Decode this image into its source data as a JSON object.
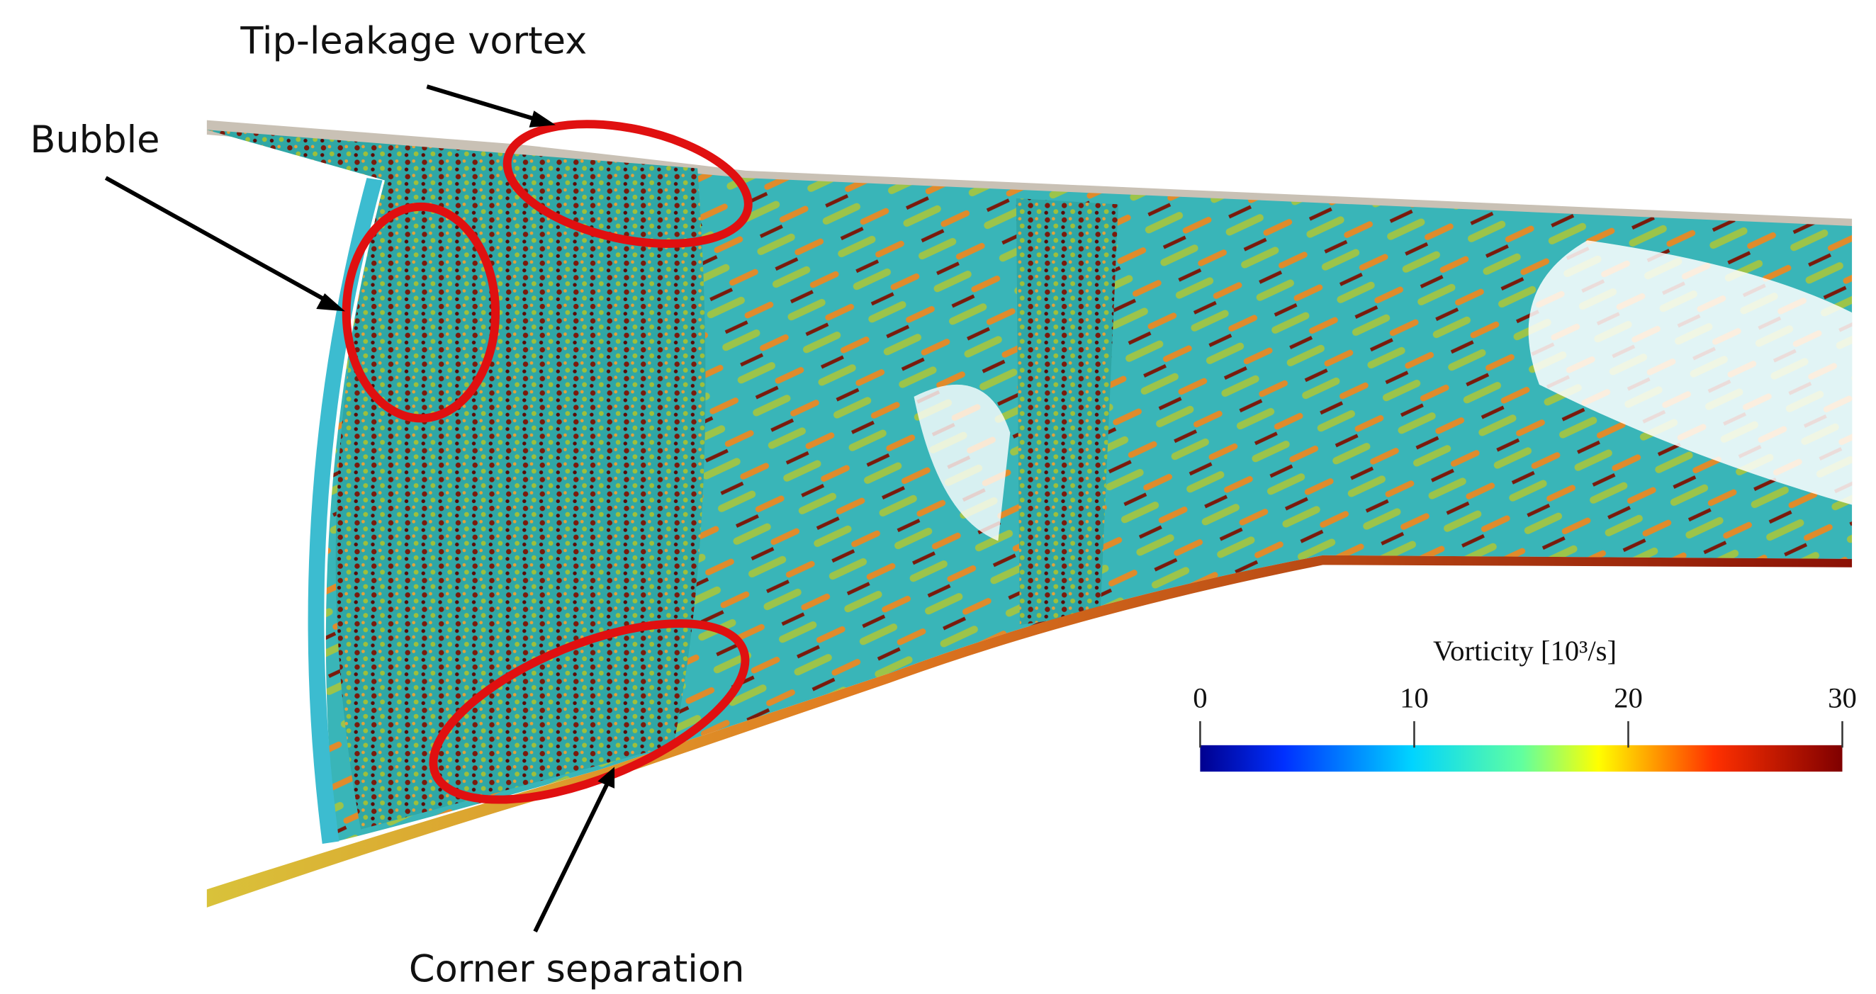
{
  "annotations": [
    {
      "label": "Tip-leakage vortex"
    },
    {
      "label": "Bubble"
    },
    {
      "label": "Corner separation"
    }
  ],
  "colorbar": {
    "title": "Vorticity [10³/s]",
    "range": [
      0,
      30
    ],
    "ticks": [
      0,
      10,
      20,
      30
    ]
  }
}
